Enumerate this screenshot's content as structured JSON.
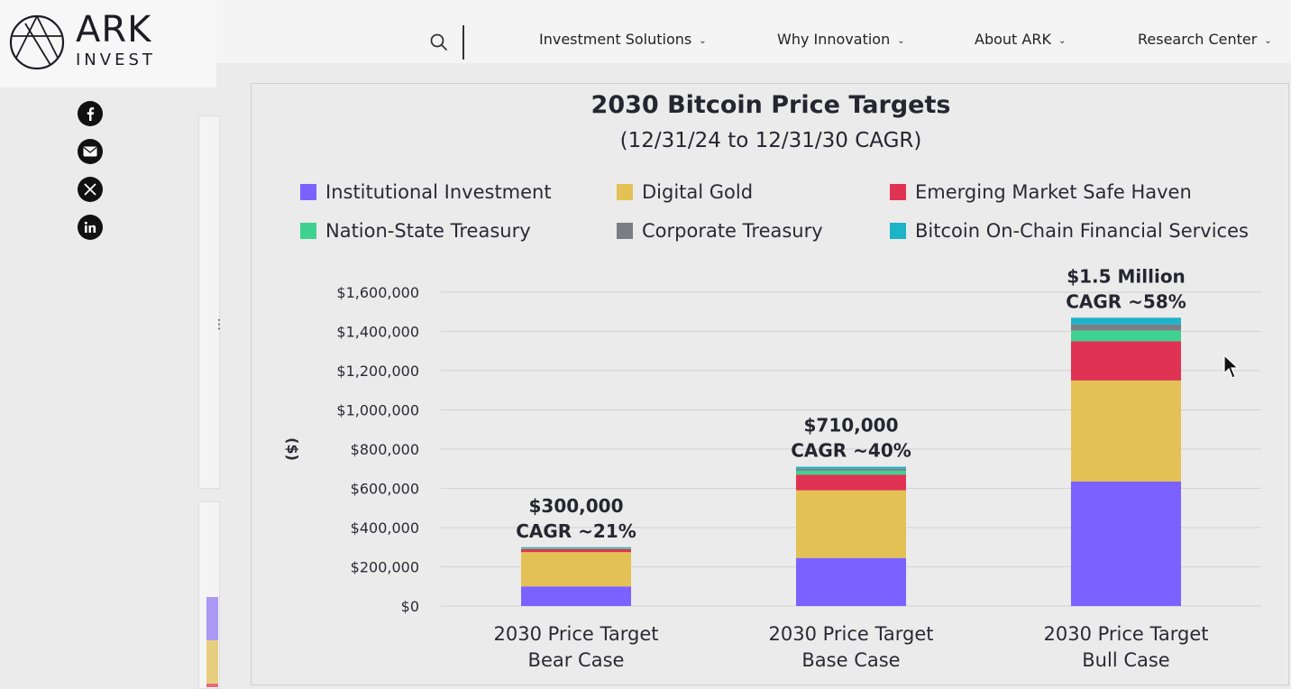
{
  "brand": {
    "name": "ARK",
    "sub": "INVEST"
  },
  "nav": {
    "items": [
      {
        "label": "Investment Solutions"
      },
      {
        "label": "Why Innovation"
      },
      {
        "label": "About ARK"
      },
      {
        "label": "Research Center"
      }
    ]
  },
  "share": [
    "facebook-icon",
    "email-icon",
    "x-icon",
    "linkedin-icon"
  ],
  "colors": {
    "institutional": "#7b61ff",
    "gold": "#e3c154",
    "safe_haven": "#e03252",
    "nation_state": "#3fd18f",
    "corporate": "#7b7d85",
    "onchain": "#1fb3c8"
  },
  "chart_data": {
    "type": "bar",
    "stacked": true,
    "title": "2030 Bitcoin Price Targets",
    "subtitle": "(12/31/24 to 12/31/30 CAGR)",
    "ylabel": "($)",
    "ylim": [
      0,
      1600000
    ],
    "yticks": [
      "$1,600,000",
      "$1,400,000",
      "$1,200,000",
      "$1,000,000",
      "$800,000",
      "$600,000",
      "$400,000",
      "$200,000",
      "$0"
    ],
    "ytick_values": [
      1600000,
      1400000,
      1200000,
      1000000,
      800000,
      600000,
      400000,
      200000,
      0
    ],
    "grid": true,
    "legend_placement": "top",
    "categories": [
      [
        "2030 Price Target",
        "Bear Case"
      ],
      [
        "2030 Price Target",
        "Base Case"
      ],
      [
        "2030 Price Target",
        "Bull Case"
      ]
    ],
    "series": [
      {
        "name": "Institutional Investment",
        "color_key": "institutional",
        "values": [
          100000,
          245000,
          635000
        ]
      },
      {
        "name": "Digital Gold",
        "color_key": "gold",
        "values": [
          175000,
          345000,
          515000
        ]
      },
      {
        "name": "Emerging Market Safe Haven",
        "color_key": "safe_haven",
        "values": [
          15000,
          80000,
          200000
        ]
      },
      {
        "name": "Nation-State Treasury",
        "color_key": "nation_state",
        "values": [
          4000,
          20000,
          55000
        ]
      },
      {
        "name": "Corporate Treasury",
        "color_key": "corporate",
        "values": [
          3000,
          10000,
          30000
        ]
      },
      {
        "name": "Bitcoin On-Chain Financial Services",
        "color_key": "onchain",
        "values": [
          3000,
          10000,
          35000
        ]
      }
    ],
    "annotations": [
      {
        "price": "$300,000",
        "cagr": "CAGR ~21%"
      },
      {
        "price": "$710,000",
        "cagr": "CAGR ~40%"
      },
      {
        "price": "$1.5 Million",
        "cagr": "CAGR ~58%"
      }
    ]
  }
}
